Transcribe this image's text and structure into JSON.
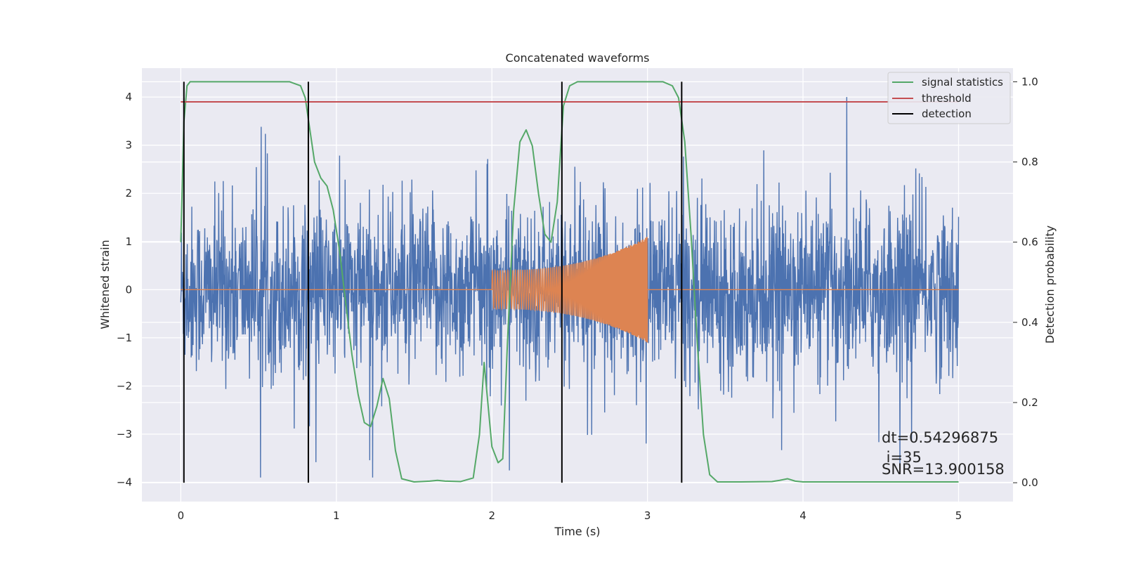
{
  "chart_data": {
    "type": "line",
    "title": "Concatenated waveforms",
    "xlabel": "Time (s)",
    "ylabel": "Whitened strain",
    "y2label": "Detection probability",
    "xlim": [
      -0.25,
      5.35
    ],
    "ylim": [
      -4.4,
      4.6
    ],
    "y2lim": [
      -0.047,
      1.034
    ],
    "x_ticks": [
      0,
      1,
      2,
      3,
      4,
      5
    ],
    "y_ticks": [
      -4,
      -3,
      -2,
      -1,
      0,
      1,
      2,
      3,
      4
    ],
    "y2_ticks": [
      0.0,
      0.2,
      0.4,
      0.6,
      0.8,
      1.0
    ],
    "x_tick_labels": [
      "0",
      "1",
      "2",
      "3",
      "4",
      "5"
    ],
    "y_tick_labels": [
      "−4",
      "−3",
      "−2",
      "−1",
      "0",
      "1",
      "2",
      "3",
      "4"
    ],
    "y2_tick_labels": [
      "0.0",
      "0.2",
      "0.4",
      "0.6",
      "0.8",
      "1.0"
    ],
    "grid": true,
    "legend_position": "top-right",
    "series": [
      {
        "name": "",
        "axis": "left",
        "color": "#4c72b0",
        "kind": "noise",
        "x_range": [
          0,
          5
        ],
        "envelope": 2.6
      },
      {
        "name": "",
        "axis": "left",
        "color": "#dd8452",
        "kind": "chirp",
        "x_range": [
          0,
          5
        ],
        "chirp_start": 2.0,
        "chirp_end": 3.0,
        "amp_start": 0.4,
        "amp_end": 1.1
      },
      {
        "name": "signal statistics",
        "axis": "right",
        "color": "#55a868",
        "x": [
          0.0,
          0.02,
          0.04,
          0.06,
          0.1,
          0.7,
          0.77,
          0.8,
          0.83,
          0.86,
          0.9,
          0.94,
          0.98,
          1.02,
          1.06,
          1.1,
          1.14,
          1.18,
          1.22,
          1.26,
          1.3,
          1.34,
          1.38,
          1.42,
          1.5,
          1.6,
          1.65,
          1.7,
          1.8,
          1.88,
          1.92,
          1.95,
          2.0,
          2.04,
          2.07,
          2.1,
          2.14,
          2.18,
          2.22,
          2.26,
          2.3,
          2.34,
          2.38,
          2.42,
          2.46,
          2.5,
          2.55,
          2.6,
          3.1,
          3.16,
          3.2,
          3.24,
          3.28,
          3.32,
          3.36,
          3.4,
          3.45,
          3.6,
          3.8,
          3.85,
          3.9,
          3.95,
          4.0,
          4.5,
          5.0
        ],
        "y": [
          0.6,
          0.9,
          0.99,
          1.0,
          1.0,
          1.0,
          0.99,
          0.96,
          0.88,
          0.8,
          0.76,
          0.74,
          0.68,
          0.58,
          0.45,
          0.32,
          0.22,
          0.15,
          0.14,
          0.19,
          0.26,
          0.21,
          0.08,
          0.01,
          0.002,
          0.004,
          0.006,
          0.004,
          0.003,
          0.012,
          0.12,
          0.3,
          0.09,
          0.05,
          0.06,
          0.35,
          0.68,
          0.85,
          0.88,
          0.84,
          0.72,
          0.62,
          0.6,
          0.7,
          0.94,
          0.99,
          1.0,
          1.0,
          1.0,
          0.99,
          0.96,
          0.85,
          0.62,
          0.35,
          0.12,
          0.02,
          0.002,
          0.002,
          0.003,
          0.006,
          0.01,
          0.004,
          0.002,
          0.002,
          0.002
        ]
      },
      {
        "name": "threshold",
        "axis": "right",
        "color": "#c44e52",
        "x": [
          0,
          5
        ],
        "y": [
          0.95,
          0.95
        ]
      },
      {
        "name": "detection",
        "axis": "right",
        "color": "#000000",
        "kind": "vlines",
        "x": [
          0.02,
          0.82,
          2.45,
          3.22
        ],
        "y_range": [
          0.0,
          1.0
        ]
      }
    ],
    "annotations": [
      "dt=0.54296875",
      " i=35",
      "SNR=13.900158"
    ]
  }
}
